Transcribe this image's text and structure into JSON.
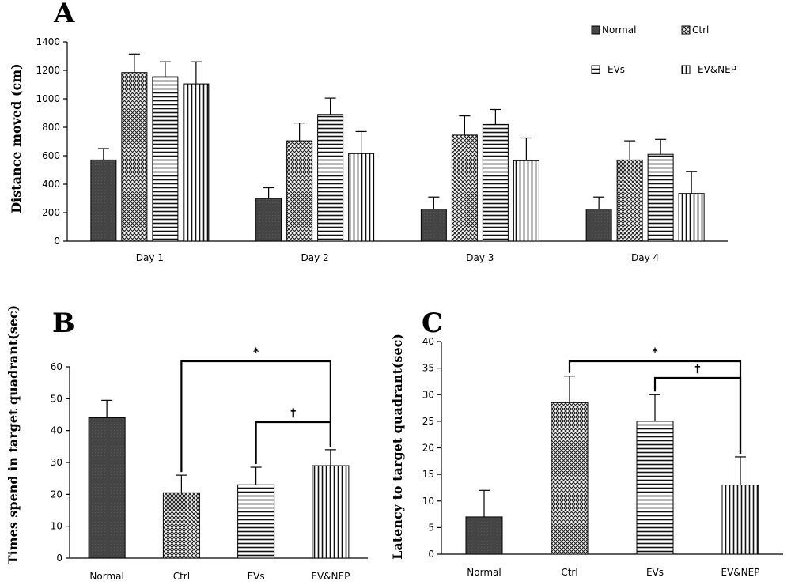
{
  "chart_data": [
    {
      "panel": "A",
      "type": "bar",
      "ylabel": "Distance moved (cm)",
      "ylim": [
        0,
        1400
      ],
      "yticks": [
        0,
        200,
        400,
        600,
        800,
        1000,
        1200,
        1400
      ],
      "categories": [
        "Day 1",
        "Day 2",
        "Day 3",
        "Day 4"
      ],
      "legend_position": "top-right",
      "series": [
        {
          "name": "Normal",
          "pattern": "solid-dark",
          "values": [
            570,
            300,
            225,
            225
          ],
          "errors": [
            80,
            75,
            85,
            85
          ]
        },
        {
          "name": "Ctrl",
          "pattern": "crosshatch",
          "values": [
            1185,
            705,
            745,
            570
          ],
          "errors": [
            130,
            125,
            135,
            135
          ]
        },
        {
          "name": "EVs",
          "pattern": "horizontal-lines",
          "values": [
            1155,
            890,
            820,
            610
          ],
          "errors": [
            105,
            115,
            105,
            105
          ]
        },
        {
          "name": "EV&NEP",
          "pattern": "vertical-lines",
          "values": [
            1105,
            615,
            565,
            335
          ],
          "errors": [
            155,
            155,
            160,
            155
          ]
        }
      ]
    },
    {
      "panel": "B",
      "type": "bar",
      "ylabel": "Times spend in target quadrant(sec)",
      "ylim": [
        0,
        60
      ],
      "yticks": [
        0,
        10,
        20,
        30,
        40,
        50,
        60
      ],
      "categories": [
        "Normal",
        "Ctrl",
        "EVs",
        "EV&NEP"
      ],
      "patterns": [
        "solid-dark",
        "crosshatch",
        "horizontal-lines",
        "vertical-lines"
      ],
      "values": [
        44,
        20.5,
        23,
        29
      ],
      "errors": [
        5.5,
        5.5,
        5.5,
        5
      ],
      "significance": [
        {
          "from": 1,
          "to": 3,
          "label": "*"
        },
        {
          "from": 2,
          "to": 3,
          "label": "†"
        }
      ]
    },
    {
      "panel": "C",
      "type": "bar",
      "ylabel": "Latency to target quadrant(sec)",
      "ylim": [
        0,
        40
      ],
      "yticks": [
        0,
        5,
        10,
        15,
        20,
        25,
        30,
        35,
        40
      ],
      "categories": [
        "Normal",
        "Ctrl",
        "EVs",
        "EV&NEP"
      ],
      "patterns": [
        "solid-dark",
        "crosshatch",
        "horizontal-lines",
        "vertical-lines"
      ],
      "values": [
        7,
        28.5,
        25,
        13
      ],
      "errors": [
        5,
        5,
        5,
        5.3
      ],
      "significance": [
        {
          "from": 1,
          "to": 3,
          "label": "*"
        },
        {
          "from": 2,
          "to": 3,
          "label": "†"
        }
      ]
    }
  ],
  "colors": {
    "solid_dark": "#454545",
    "line": "#000000",
    "background": "#ffffff"
  }
}
